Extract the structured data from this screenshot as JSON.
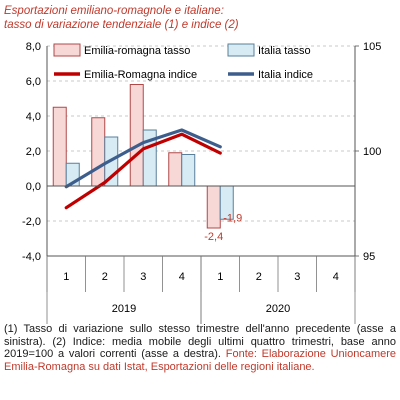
{
  "title": {
    "line1": "Esportazioni emiliano-romagnole e italiane:",
    "line2": "tasso di variazione tendenziale (1) e indice (2)"
  },
  "notes": {
    "note1": "(1) Tasso di variazione sullo stesso trimestre dell'anno precedente (asse a sinistra). (2) Indice: media mobile degli ultimi quattro trimestri, base anno 2019=100 a valori correnti (asse a destra).",
    "source": "Fonte: Elaborazione Unioncamere Emilia-Romagna su dati Istat, Esportazioni delle regioni italiane."
  },
  "colors": {
    "er_bar_fill": "#f8d7d7",
    "er_bar_stroke": "#b04848",
    "it_bar_fill": "#d6ebf3",
    "it_bar_stroke": "#5a7f9a",
    "er_line": "#c00000",
    "it_line": "#3d5e8c",
    "label_red": "#c0392b"
  },
  "chart_data": {
    "type": "bar",
    "categories": [
      "1",
      "2",
      "3",
      "4",
      "1",
      "2",
      "3",
      "4"
    ],
    "groups": [
      {
        "label": "2019",
        "span": [
          0,
          3
        ]
      },
      {
        "label": "2020",
        "span": [
          4,
          7
        ]
      }
    ],
    "y_left": {
      "min": -4,
      "max": 8,
      "ticks": [
        "-4,0",
        "-2,0",
        "0,0",
        "2,0",
        "4,0",
        "6,0",
        "8,0"
      ]
    },
    "y_right": {
      "min": 95,
      "max": 105,
      "ticks": [
        "95",
        "100",
        "105"
      ]
    },
    "legend": [
      {
        "name": "Emilia-romagna tasso",
        "kind": "bar",
        "color": "er_bar_fill"
      },
      {
        "name": "Italia tasso",
        "kind": "bar",
        "color": "it_bar_fill"
      },
      {
        "name": "Emilia-Romagna indice",
        "kind": "line",
        "color": "er_line"
      },
      {
        "name": "Italia indice",
        "kind": "line",
        "color": "it_line"
      }
    ],
    "series": [
      {
        "name": "Emilia-romagna tasso",
        "axis": "left",
        "type": "bar",
        "values": [
          4.5,
          3.9,
          5.8,
          1.9,
          -2.4,
          null,
          null,
          null
        ]
      },
      {
        "name": "Italia tasso",
        "axis": "left",
        "type": "bar",
        "values": [
          1.3,
          2.8,
          3.2,
          1.8,
          -1.9,
          null,
          null,
          null
        ]
      },
      {
        "name": "Emilia-Romagna indice",
        "axis": "right",
        "type": "line",
        "values": [
          97.3,
          98.5,
          100.1,
          100.8,
          99.9,
          null,
          null,
          null
        ]
      },
      {
        "name": "Italia indice",
        "axis": "right",
        "type": "line",
        "values": [
          98.3,
          99.4,
          100.4,
          101.0,
          100.2,
          null,
          null,
          null
        ]
      }
    ],
    "data_labels": [
      {
        "series": "Emilia-romagna tasso",
        "index": 4,
        "text": "-2,4"
      },
      {
        "series": "Italia tasso",
        "index": 4,
        "text": "-1,9"
      }
    ]
  }
}
